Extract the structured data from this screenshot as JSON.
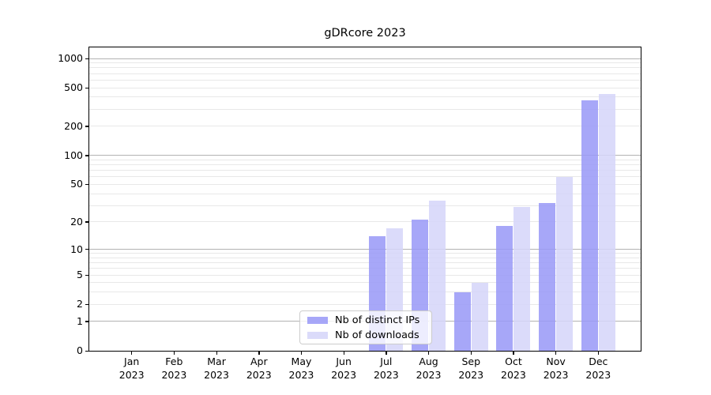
{
  "chart_data": {
    "type": "bar",
    "title": "gDRcore 2023",
    "categories": [
      "Jan",
      "Feb",
      "Mar",
      "Apr",
      "May",
      "Jun",
      "Jul",
      "Aug",
      "Sep",
      "Oct",
      "Nov",
      "Dec"
    ],
    "x_tick_year": "2023",
    "series": [
      {
        "name": "Nb of distinct IPs",
        "key": "distinct-ips",
        "color": "#9a9af7",
        "values": [
          0,
          0,
          0,
          0,
          0,
          0,
          14,
          21,
          3,
          18,
          32,
          370
        ]
      },
      {
        "name": "Nb of downloads",
        "key": "downloads",
        "color": "#d6d6f9",
        "values": [
          0,
          0,
          0,
          0,
          0,
          0,
          17,
          34,
          4,
          29,
          60,
          430
        ]
      }
    ],
    "y_axis": {
      "scale": "log1p",
      "ylim": [
        0,
        1000
      ],
      "tick_values": [
        0,
        1,
        2,
        5,
        10,
        20,
        50,
        100,
        200,
        500,
        1000
      ],
      "tick_labels": [
        "0",
        "1",
        "2",
        "5",
        "10",
        "20",
        "50",
        "100",
        "200",
        "500",
        "1000"
      ],
      "major_grid_values": [
        1,
        10,
        100,
        1000
      ],
      "minor_grid_values": [
        2,
        3,
        4,
        5,
        6,
        7,
        8,
        9,
        20,
        30,
        40,
        50,
        60,
        70,
        80,
        90,
        200,
        300,
        400,
        500,
        600,
        700,
        800,
        900
      ]
    },
    "legend_position": "lower center",
    "grid": true,
    "colors": {
      "major_grid": "#b3b3b3",
      "minor_grid": "#e8e8e8",
      "spine": "#000000",
      "background": "#ffffff"
    }
  }
}
